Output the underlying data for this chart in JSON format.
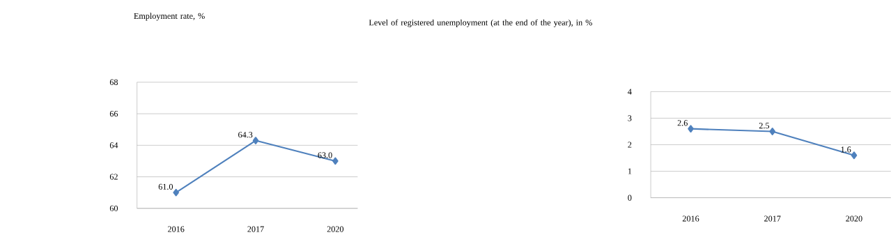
{
  "chart_data": [
    {
      "type": "line",
      "title": "Employment rate, %",
      "categories": [
        "2016",
        "2017",
        "2020"
      ],
      "series": [
        {
          "color": "#4f81bd",
          "values": [
            61.0,
            64.3,
            63.0
          ],
          "value_labels": [
            "61.0",
            "64.3",
            "63.0"
          ]
        }
      ],
      "ylim": [
        60,
        68
      ],
      "yticks": [
        60,
        62,
        64,
        66,
        68
      ],
      "grid": "y",
      "marker": "diamond",
      "line_style": "solid"
    },
    {
      "type": "line",
      "title": "Level of registered unemployment (at the end of the year), in %",
      "categories": [
        "2016",
        "2017",
        "2020"
      ],
      "series": [
        {
          "color": "#4f81bd",
          "values": [
            2.6,
            2.5,
            1.6
          ],
          "value_labels": [
            "2.6",
            "2.5",
            "1.6"
          ]
        }
      ],
      "ylim": [
        0,
        4
      ],
      "yticks": [
        0,
        1,
        2,
        3,
        4
      ],
      "grid": "y",
      "marker": "diamond",
      "line_style": "solid"
    }
  ]
}
